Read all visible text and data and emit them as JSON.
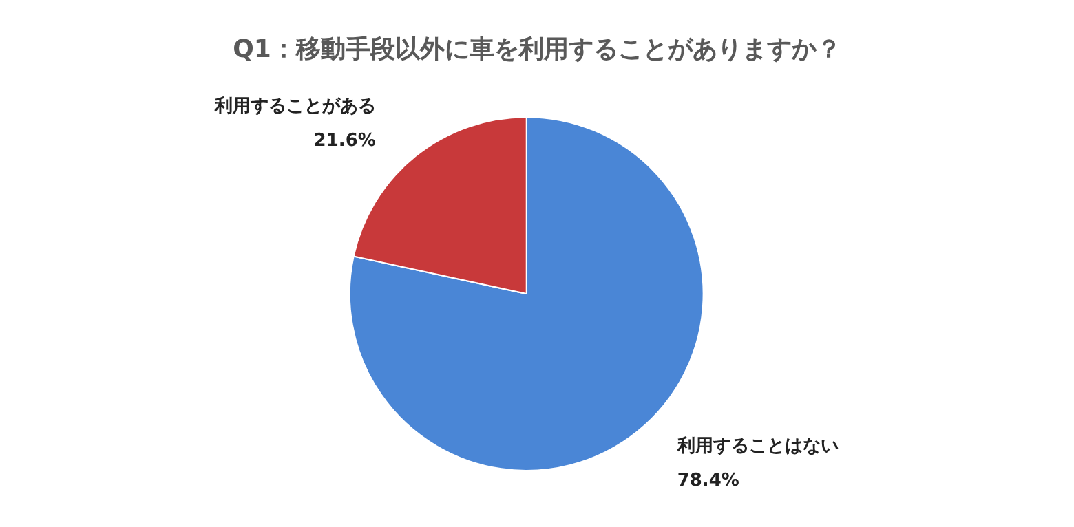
{
  "chart_data": {
    "type": "pie",
    "title": "Q1：移動手段以外に車を利用することがありますか？",
    "categories": [
      "利用することはない",
      "利用することがある"
    ],
    "values": [
      78.4,
      21.6
    ],
    "colors": [
      "#4a86d6",
      "#c8393a"
    ],
    "value_labels": [
      "78.4%",
      "21.6%"
    ]
  }
}
